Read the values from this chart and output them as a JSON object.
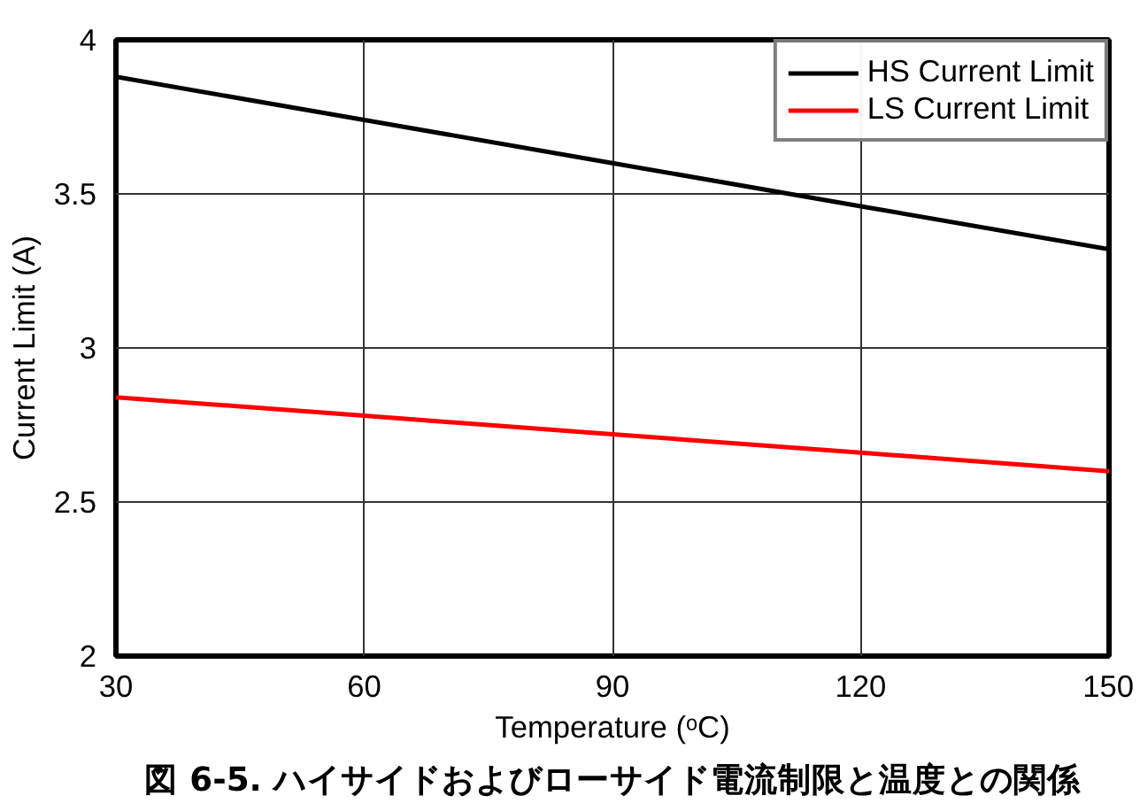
{
  "chart_data": {
    "type": "line",
    "title": "図 6-5. ハイサイドおよびローサイド電流制限と温度との関係",
    "xlabel": "Temperature (ᵒC)",
    "ylabel": "Current Limit (A)",
    "x": [
      30,
      60,
      90,
      120,
      150
    ],
    "series": [
      {
        "name": "HS Current Limit",
        "color": "#000000",
        "values": [
          3.88,
          3.74,
          3.6,
          3.46,
          3.32
        ]
      },
      {
        "name": "LS Current Limit",
        "color": "#ff0000",
        "values": [
          2.84,
          2.78,
          2.72,
          2.66,
          2.6
        ]
      }
    ],
    "xlim": [
      30,
      150
    ],
    "xticks": [
      30,
      60,
      90,
      120,
      150
    ],
    "ylim": [
      2,
      4
    ],
    "yticks": [
      2,
      2.5,
      3,
      3.5,
      4
    ],
    "grid": true,
    "legend": "top right",
    "line_style": "solid",
    "marker": "none"
  }
}
